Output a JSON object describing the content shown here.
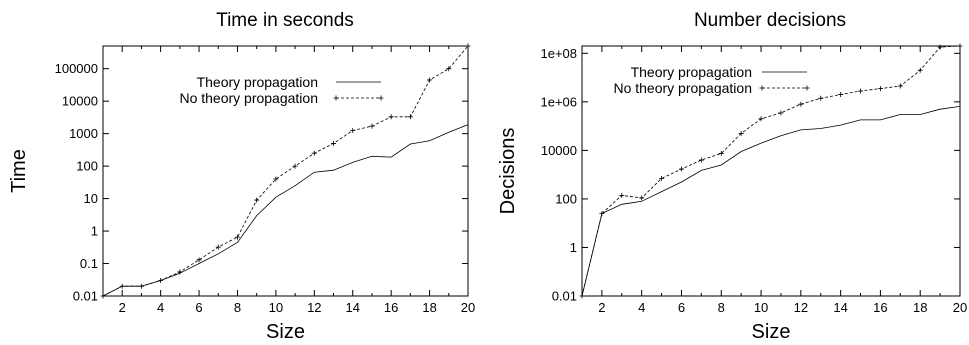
{
  "chart_data": [
    {
      "type": "line",
      "title": "Time in seconds",
      "xlabel": "Size",
      "ylabel": "Time",
      "xlim": [
        1,
        20
      ],
      "ylim": [
        0.01,
        500000
      ],
      "yscale": "log",
      "grid": false,
      "legend": "top-left",
      "x_ticks": [
        "2",
        "4",
        "6",
        "8",
        "10",
        "12",
        "14",
        "16",
        "18",
        "20"
      ],
      "y_ticks": [
        "0.01",
        "0.1",
        "1",
        "10",
        "100",
        "1000",
        "10000",
        "100000"
      ],
      "series": [
        {
          "name": "Theory propagation",
          "style": "solid",
          "x": [
            1,
            2,
            3,
            4,
            5,
            6,
            7,
            8,
            9,
            10,
            11,
            12,
            13,
            14,
            15,
            16,
            17,
            18,
            19,
            20
          ],
          "y": [
            0.01,
            0.02,
            0.02,
            0.03,
            0.05,
            0.1,
            0.2,
            0.45,
            3,
            11,
            25,
            65,
            75,
            130,
            200,
            190,
            480,
            600,
            1100,
            1900
          ]
        },
        {
          "name": "No theory propagation",
          "style": "dashed",
          "x": [
            1,
            2,
            3,
            4,
            5,
            6,
            7,
            8,
            9,
            10,
            11,
            12,
            13,
            14,
            15,
            16,
            17,
            18,
            19,
            20
          ],
          "y": [
            0.01,
            0.02,
            0.02,
            0.03,
            0.055,
            0.13,
            0.32,
            0.65,
            9,
            40,
            100,
            250,
            500,
            1250,
            1700,
            3300,
            3300,
            45000,
            100000,
            500000
          ]
        }
      ]
    },
    {
      "type": "line",
      "title": "Number decisions",
      "xlabel": "Size",
      "ylabel": "Decisions",
      "xlim": [
        1,
        20
      ],
      "ylim": [
        0.01,
        200000000
      ],
      "yscale": "log",
      "grid": false,
      "legend": "top-left",
      "x_ticks": [
        "2",
        "4",
        "6",
        "8",
        "10",
        "12",
        "14",
        "16",
        "18",
        "20"
      ],
      "y_ticks": [
        "0.01",
        "1",
        "100",
        "10000",
        "1e+06",
        "1e+08"
      ],
      "series": [
        {
          "name": "Theory propagation",
          "style": "solid",
          "x": [
            1,
            2,
            3,
            4,
            5,
            6,
            7,
            8,
            9,
            10,
            11,
            12,
            13,
            14,
            15,
            16,
            17,
            18,
            19,
            20
          ],
          "y": [
            0.01,
            25,
            60,
            80,
            200,
            500,
            1500,
            2500,
            9000,
            20000,
            40000,
            70000,
            80000,
            110000,
            180000,
            180000,
            300000,
            300000,
            500000,
            650000
          ]
        },
        {
          "name": "No theory propagation",
          "style": "dashed",
          "x": [
            1,
            2,
            3,
            4,
            5,
            6,
            7,
            8,
            9,
            10,
            11,
            12,
            13,
            14,
            15,
            16,
            17,
            18,
            19,
            20
          ],
          "y": [
            0.01,
            25,
            140,
            110,
            700,
            1700,
            4000,
            7500,
            50000,
            200000,
            350000,
            800000,
            1400000,
            2000000,
            2800000,
            3500000,
            4500000,
            20000000,
            180000000,
            200000000
          ]
        }
      ]
    }
  ]
}
